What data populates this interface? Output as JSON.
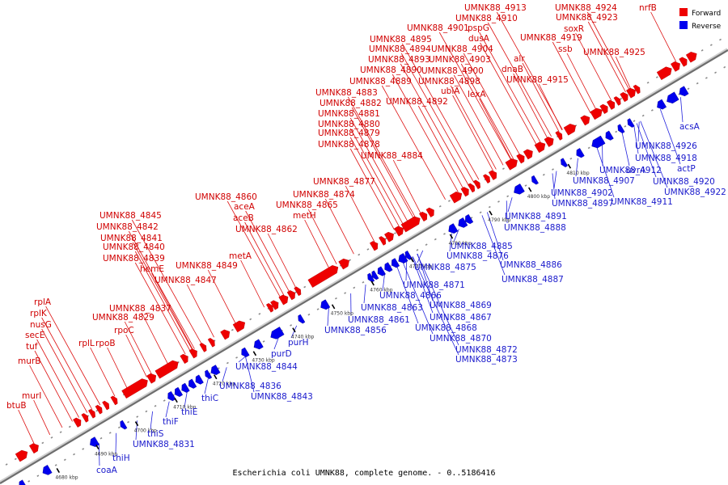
{
  "caption": "Escherichia coli UMNK88, complete genome. - 0..5186416",
  "legend": {
    "forward": "Forward",
    "reverse": "Reverse",
    "forward_color": "#ee0000",
    "reverse_color": "#0000ee"
  },
  "ticks": [
    "4680 kbp",
    "4690 kbp",
    "4700 kbp",
    "4710 kbp",
    "4720 kbp",
    "4730 kbp",
    "4740 kbp",
    "4750 kbp",
    "4760 kbp",
    "4770 kbp",
    "4780 kbp",
    "4790 kbp",
    "4800 kbp",
    "4810 kbp"
  ],
  "forward_labels": [
    "btuB",
    "murI",
    "murB",
    "rplA",
    "rplK",
    "nusG",
    "secE",
    "tuf",
    "rplL",
    "rpoB",
    "rpoC",
    "UMNK88_4829",
    "UMNK88_4837",
    "UMNK88_4847",
    "hemE",
    "UMNK88_4839",
    "UMNK88_4840",
    "UMNK88_4841",
    "UMNK88_4842",
    "UMNK88_4845",
    "UMNK88_4849",
    "metA",
    "aceB",
    "UMNK88_4862",
    "aceA",
    "UMNK88_4860",
    "UMNK88_4865",
    "metH",
    "UMNK88_4874",
    "UMNK88_4877",
    "UMNK88_4884",
    "UMNK88_4878",
    "UMNK88_4879",
    "UMNK88_4880",
    "UMNK88_4881",
    "UMNK88_4882",
    "UMNK88_4883",
    "UMNK88_4889",
    "UMNK88_4890",
    "UMNK88_4893",
    "UMNK88_4894",
    "UMNK88_4895",
    "UMNK88_4892",
    "UMNK88_4898",
    "UMNK88_4900",
    "UMNK88_4903",
    "UMNK88_4904",
    "UMNK88_4901",
    "ubiA",
    "lexA",
    "pspG",
    "dusA",
    "UMNK88_4910",
    "UMNK88_4913",
    "alr",
    "dnaB",
    "UMNK88_4915",
    "UMNK88_4919",
    "ssb",
    "soxR",
    "UMNK88_4923",
    "UMNK88_4924",
    "UMNK88_4925",
    "nrfB"
  ],
  "reverse_labels": [
    "coaA",
    "thiH",
    "UMNK88_4831",
    "thiS",
    "thiF",
    "thiE",
    "thiC",
    "UMNK88_4836",
    "UMNK88_4843",
    "UMNK88_4844",
    "purD",
    "purH",
    "UMNK88_4856",
    "UMNK88_4861",
    "UMNK88_4863",
    "UMNK88_4866",
    "UMNK88_4871",
    "UMNK88_4869",
    "UMNK88_4867",
    "UMNK88_4868",
    "UMNK88_4870",
    "UMNK88_4872",
    "UMNK88_4873",
    "UMNK88_4875",
    "UMNK88_4876",
    "UMNK88_4885",
    "UMNK88_4886",
    "UMNK88_4887",
    "UMNK88_4888",
    "UMNK88_4891",
    "UMNK88_4897",
    "UMNK88_4902",
    "UMNK88_4907",
    "UMNK88_4912",
    "uvrA",
    "UMNK88_4911",
    "UMNK88_4918",
    "UMNK88_4926",
    "actP",
    "UMNK88_4920",
    "UMNK88_4922",
    "acsA"
  ]
}
